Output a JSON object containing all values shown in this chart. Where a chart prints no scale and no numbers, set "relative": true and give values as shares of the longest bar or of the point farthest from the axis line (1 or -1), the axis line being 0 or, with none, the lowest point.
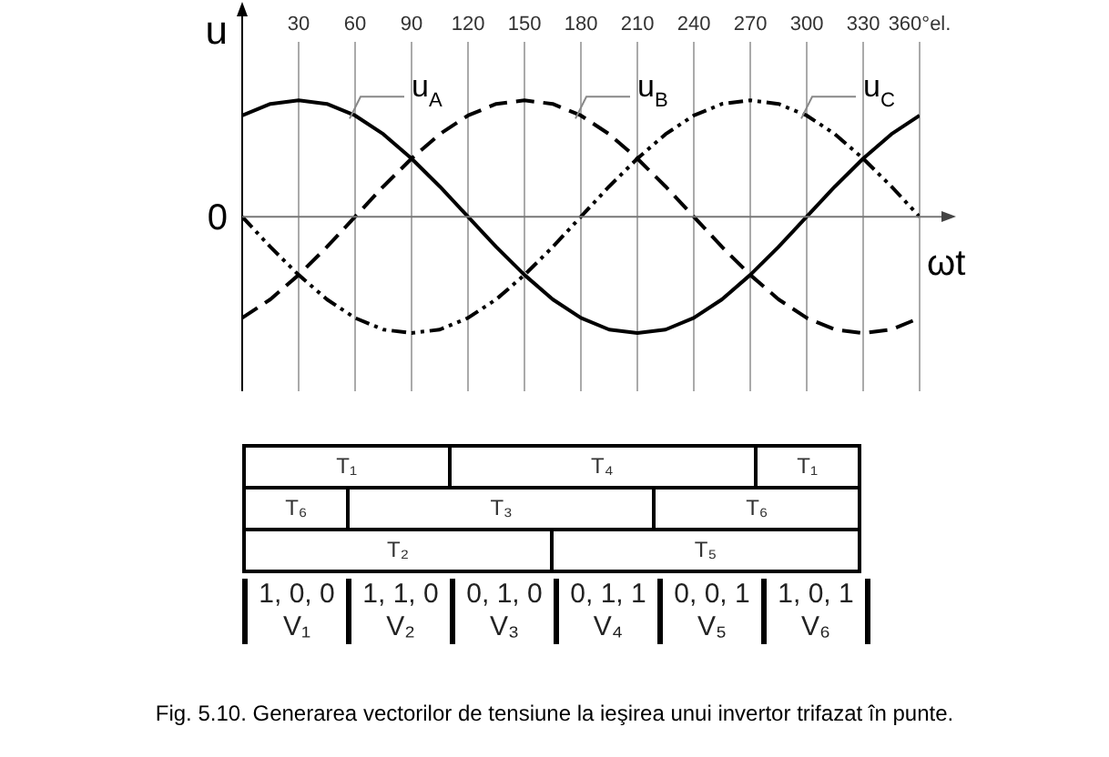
{
  "chart_data": [
    {
      "type": "line",
      "ylabel": "u",
      "xlabel": "ωt",
      "relative": true,
      "grid": "x",
      "legend": false,
      "marker": "none",
      "x": [
        0,
        15,
        30,
        45,
        60,
        75,
        90,
        105,
        120,
        135,
        150,
        165,
        180,
        195,
        210,
        225,
        240,
        255,
        270,
        285,
        300,
        315,
        330,
        345,
        360
      ],
      "xlim": [
        0,
        360
      ],
      "xticks": [
        30,
        60,
        90,
        120,
        150,
        180,
        210,
        240,
        270,
        300,
        330,
        {
          "value": 360,
          "label": "360°el."
        }
      ],
      "series": [
        {
          "name": "u$_{A}$",
          "color": "#000000",
          "line_style": "solid",
          "values": [
            0.87,
            0.97,
            1,
            0.97,
            0.87,
            0.71,
            0.5,
            0.26,
            0,
            -0.26,
            -0.5,
            -0.71,
            -0.87,
            -0.97,
            -1,
            -0.97,
            -0.87,
            -0.71,
            -0.5,
            -0.26,
            0,
            0.26,
            0.5,
            0.71,
            0.87
          ]
        },
        {
          "name": "u$_{B}$",
          "color": "#000000",
          "line_style": "dashed",
          "values": [
            -0.87,
            -0.71,
            -0.5,
            -0.26,
            0,
            0.26,
            0.5,
            0.71,
            0.87,
            0.97,
            1,
            0.97,
            0.87,
            0.71,
            0.5,
            0.26,
            0,
            -0.26,
            -0.5,
            -0.71,
            -0.87,
            -0.97,
            -1,
            -0.97,
            -0.87
          ]
        },
        {
          "name": "u$_{C}$",
          "color": "#000000",
          "line_style": "dotted",
          "values": [
            0,
            -0.26,
            -0.5,
            -0.71,
            -0.87,
            -0.97,
            -1,
            -0.97,
            -0.87,
            -0.71,
            -0.5,
            -0.26,
            0,
            0.26,
            0.5,
            0.71,
            0.87,
            0.97,
            1,
            0.97,
            0.87,
            0.71,
            0.5,
            0.26,
            0
          ]
        }
      ],
      "ref_lines": [
        {
          "axis": "y",
          "value": 0,
          "label": "0"
        }
      ],
      "annotations": [
        "Fig. 5.10. Generarea vectorilor de tensiune la ieşirea unui invertor trifazat în punte."
      ]
    },
    {
      "type": "other",
      "annotations": [
        "T₁",
        "T₄",
        "T₁",
        "T₆",
        "T₃",
        "T₆",
        "T₂",
        "T₅",
        "1, 0, 0",
        "V₁",
        "1, 1, 0",
        "V₂",
        "0, 1, 0",
        "V₃",
        "0, 1, 1",
        "V₄",
        "0, 0, 1",
        "V₅",
        "1, 0, 1",
        "V₆"
      ]
    }
  ]
}
